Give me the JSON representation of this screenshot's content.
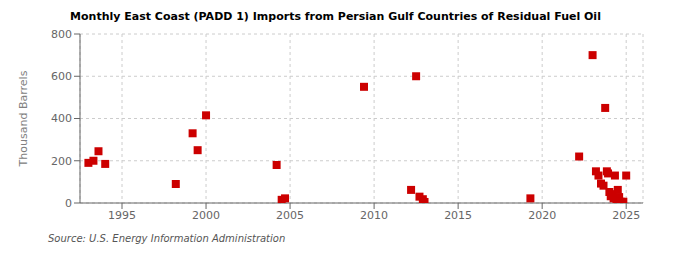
{
  "chart_data": {
    "type": "scatter",
    "title": "Monthly East Coast (PADD 1) Imports from Persian Gulf Countries of Residual Fuel Oil",
    "ylabel": "Thousand Barrels",
    "annotations": [
      "Source: U.S. Energy Information Administration"
    ],
    "color": "#cc0000",
    "marker": "square",
    "grid": true,
    "xlim": [
      1992.5,
      2026
    ],
    "xticks": [
      1995,
      2000,
      2005,
      2010,
      2015,
      2020,
      2025
    ],
    "ylim": [
      0,
      800
    ],
    "yticks": [
      0,
      200,
      400,
      600,
      800
    ],
    "x": [
      1993.0,
      1993.3,
      1993.6,
      1994.0,
      1998.2,
      1999.2,
      1999.5,
      2000.0,
      2004.2,
      2004.5,
      2004.7,
      2009.4,
      2012.2,
      2012.5,
      2012.7,
      2012.9,
      2013.0,
      2019.3,
      2022.2,
      2023.0,
      2023.2,
      2023.35,
      2023.5,
      2023.65,
      2023.75,
      2023.85,
      2023.92,
      2024.0,
      2024.08,
      2024.17,
      2024.25,
      2024.33,
      2024.42,
      2024.5,
      2024.58,
      2024.67,
      2024.83,
      2025.0
    ],
    "values": [
      190,
      200,
      245,
      185,
      90,
      330,
      250,
      415,
      180,
      15,
      22,
      550,
      62,
      600,
      30,
      18,
      5,
      22,
      220,
      700,
      150,
      130,
      92,
      82,
      450,
      150,
      140,
      52,
      32,
      42,
      22,
      130,
      12,
      62,
      28,
      6,
      6,
      130
    ]
  }
}
